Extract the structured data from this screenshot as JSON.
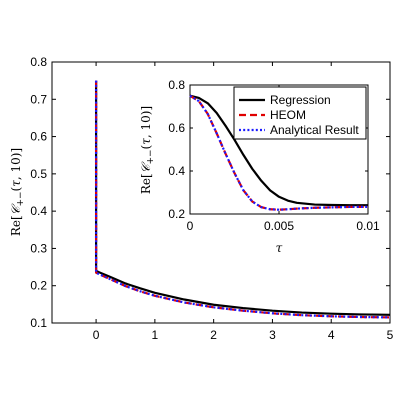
{
  "chart_data": [
    {
      "type": "line",
      "panel": "main",
      "xlim": [
        -0.75,
        5
      ],
      "ylim": [
        0.1,
        0.8
      ],
      "xticks": [
        "0",
        "1",
        "2",
        "3",
        "4",
        "5"
      ],
      "yticks": [
        "0.1",
        "0.2",
        "0.3",
        "0.4",
        "0.5",
        "0.6",
        "0.7",
        "0.8"
      ],
      "ylabel": "Re[C+−(τ,10)]",
      "xlabel": "",
      "legend": "none",
      "series": [
        {
          "name": "Regression",
          "color": "#000000",
          "style": "solid",
          "x": [
            0,
            0,
            0.05,
            0.25,
            0.5,
            0.75,
            1.0,
            1.5,
            2.0,
            2.5,
            3.0,
            3.5,
            4.0,
            4.5,
            5.0
          ],
          "y": [
            0.75,
            0.24,
            0.236,
            0.223,
            0.206,
            0.193,
            0.181,
            0.163,
            0.149,
            0.14,
            0.133,
            0.128,
            0.125,
            0.123,
            0.122
          ]
        },
        {
          "name": "HEOM",
          "color": "#e00000",
          "style": "dashed",
          "x": [
            0,
            0,
            0.05,
            0.25,
            0.5,
            0.75,
            1.0,
            1.5,
            2.0,
            2.5,
            3.0,
            3.5,
            4.0,
            4.5,
            5.0
          ],
          "y": [
            0.75,
            0.235,
            0.231,
            0.217,
            0.199,
            0.185,
            0.173,
            0.155,
            0.142,
            0.133,
            0.126,
            0.121,
            0.118,
            0.116,
            0.115
          ]
        },
        {
          "name": "Analytical Result",
          "color": "#1a1aff",
          "style": "dotted",
          "x": [
            0,
            0,
            0.05,
            0.25,
            0.5,
            0.75,
            1.0,
            1.5,
            2.0,
            2.5,
            3.0,
            3.5,
            4.0,
            4.5,
            5.0
          ],
          "y": [
            0.75,
            0.235,
            0.231,
            0.217,
            0.199,
            0.185,
            0.173,
            0.155,
            0.142,
            0.133,
            0.126,
            0.121,
            0.118,
            0.116,
            0.115
          ]
        }
      ]
    },
    {
      "type": "line",
      "panel": "inset",
      "xlim": [
        0,
        0.01
      ],
      "ylim": [
        0.2,
        0.8
      ],
      "xticks": [
        "0",
        "0.005",
        "0.01"
      ],
      "yticks": [
        "0.2",
        "0.4",
        "0.6",
        "0.8"
      ],
      "xlabel": "τ",
      "ylabel": "Re[C+−(τ,10)]",
      "legend": "top-right",
      "series": [
        {
          "name": "Regression",
          "color": "#000000",
          "style": "solid",
          "x": [
            0,
            0.0005,
            0.001,
            0.0015,
            0.002,
            0.0025,
            0.003,
            0.0035,
            0.004,
            0.0045,
            0.005,
            0.0055,
            0.006,
            0.007,
            0.008,
            0.009,
            0.01
          ],
          "y": [
            0.75,
            0.74,
            0.715,
            0.67,
            0.61,
            0.545,
            0.475,
            0.41,
            0.355,
            0.31,
            0.28,
            0.262,
            0.252,
            0.244,
            0.242,
            0.241,
            0.241
          ]
        },
        {
          "name": "HEOM",
          "color": "#e00000",
          "style": "dashed",
          "x": [
            0,
            0.0005,
            0.001,
            0.0015,
            0.002,
            0.0025,
            0.003,
            0.0035,
            0.004,
            0.0045,
            0.005,
            0.0055,
            0.006,
            0.007,
            0.008,
            0.009,
            0.01
          ],
          "y": [
            0.75,
            0.725,
            0.665,
            0.575,
            0.48,
            0.39,
            0.31,
            0.258,
            0.232,
            0.222,
            0.22,
            0.222,
            0.225,
            0.229,
            0.231,
            0.233,
            0.233
          ]
        },
        {
          "name": "Analytical Result",
          "color": "#1a1aff",
          "style": "dotted",
          "x": [
            0,
            0.0005,
            0.001,
            0.0015,
            0.002,
            0.0025,
            0.003,
            0.0035,
            0.004,
            0.0045,
            0.005,
            0.0055,
            0.006,
            0.007,
            0.008,
            0.009,
            0.01
          ],
          "y": [
            0.75,
            0.725,
            0.665,
            0.575,
            0.48,
            0.39,
            0.31,
            0.258,
            0.232,
            0.222,
            0.22,
            0.222,
            0.225,
            0.229,
            0.231,
            0.233,
            0.233
          ]
        }
      ]
    }
  ]
}
